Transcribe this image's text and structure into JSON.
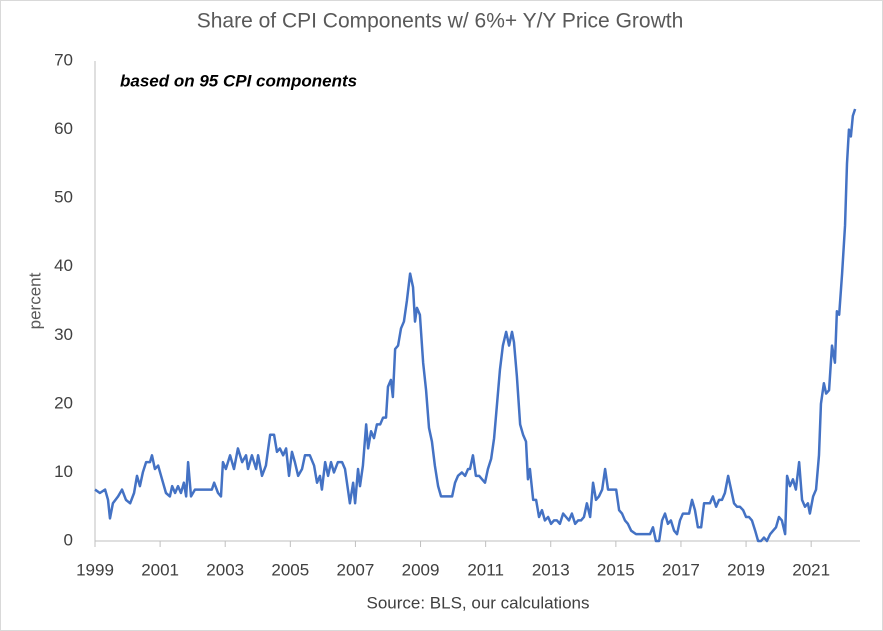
{
  "chart_data": {
    "type": "line",
    "title": "Share of CPI Components w/ 6%+ Y/Y Price Growth",
    "annotation": "based on 95 CPI components",
    "y_label": "percent",
    "x_label": "Source: BLS, our calculations",
    "color": "#4472c4",
    "xlim": [
      1999,
      2022.5
    ],
    "ylim": [
      0,
      70
    ],
    "xticks": [
      1999,
      2001,
      2003,
      2005,
      2007,
      2009,
      2011,
      2013,
      2015,
      2017,
      2019,
      2021
    ],
    "yticks": [
      0,
      10,
      20,
      30,
      40,
      50,
      60,
      70
    ],
    "grid": false,
    "x": [
      1999.0,
      1999.15,
      1999.31,
      1999.4,
      1999.46,
      1999.55,
      1999.71,
      1999.83,
      1999.95,
      2000.08,
      2000.2,
      2000.29,
      2000.38,
      2000.47,
      2000.57,
      2000.69,
      2000.75,
      2000.84,
      2000.94,
      2001.06,
      2001.18,
      2001.3,
      2001.37,
      2001.46,
      2001.55,
      2001.64,
      2001.73,
      2001.8,
      2001.86,
      2001.95,
      2002.07,
      2002.38,
      2002.59,
      2002.66,
      2002.78,
      2002.87,
      2002.93,
      2003.02,
      2003.15,
      2003.27,
      2003.39,
      2003.52,
      2003.64,
      2003.7,
      2003.82,
      2003.95,
      2004.01,
      2004.13,
      2004.25,
      2004.38,
      2004.5,
      2004.59,
      2004.68,
      2004.78,
      2004.87,
      2004.96,
      2005.05,
      2005.14,
      2005.24,
      2005.36,
      2005.45,
      2005.6,
      2005.73,
      2005.82,
      2005.91,
      2005.97,
      2006.07,
      2006.16,
      2006.25,
      2006.34,
      2006.46,
      2006.59,
      2006.68,
      2006.77,
      2006.83,
      2006.93,
      2006.99,
      2007.08,
      2007.14,
      2007.23,
      2007.33,
      2007.39,
      2007.48,
      2007.57,
      2007.66,
      2007.76,
      2007.85,
      2007.94,
      2008.0,
      2008.09,
      2008.15,
      2008.22,
      2008.31,
      2008.4,
      2008.49,
      2008.58,
      2008.68,
      2008.77,
      2008.83,
      2008.89,
      2008.98,
      2009.08,
      2009.17,
      2009.26,
      2009.35,
      2009.44,
      2009.54,
      2009.63,
      2009.84,
      2009.97,
      2010.06,
      2010.15,
      2010.27,
      2010.37,
      2010.46,
      2010.52,
      2010.61,
      2010.7,
      2010.8,
      2010.89,
      2010.98,
      2011.07,
      2011.17,
      2011.26,
      2011.35,
      2011.44,
      2011.53,
      2011.63,
      2011.72,
      2011.81,
      2011.87,
      2011.96,
      2012.06,
      2012.15,
      2012.24,
      2012.3,
      2012.36,
      2012.46,
      2012.55,
      2012.64,
      2012.73,
      2012.82,
      2012.92,
      2013.01,
      2013.1,
      2013.19,
      2013.28,
      2013.38,
      2013.47,
      2013.56,
      2013.65,
      2013.75,
      2013.84,
      2013.93,
      2014.02,
      2014.11,
      2014.21,
      2014.3,
      2014.39,
      2014.48,
      2014.58,
      2014.67,
      2014.76,
      2014.91,
      2015.01,
      2015.1,
      2015.19,
      2015.28,
      2015.37,
      2015.47,
      2015.62,
      2015.9,
      2016.05,
      2016.14,
      2016.23,
      2016.33,
      2016.42,
      2016.51,
      2016.6,
      2016.69,
      2016.79,
      2016.88,
      2016.97,
      2017.06,
      2017.16,
      2017.25,
      2017.34,
      2017.43,
      2017.52,
      2017.62,
      2017.71,
      2017.8,
      2017.89,
      2017.98,
      2018.08,
      2018.17,
      2018.26,
      2018.35,
      2018.45,
      2018.54,
      2018.63,
      2018.72,
      2018.81,
      2018.91,
      2019.0,
      2019.09,
      2019.18,
      2019.28,
      2019.37,
      2019.46,
      2019.55,
      2019.64,
      2019.74,
      2019.83,
      2019.92,
      2020.01,
      2020.1,
      2020.2,
      2020.26,
      2020.35,
      2020.44,
      2020.53,
      2020.63,
      2020.72,
      2020.81,
      2020.9,
      2020.96,
      2021.06,
      2021.15,
      2021.24,
      2021.3,
      2021.39,
      2021.46,
      2021.55,
      2021.64,
      2021.73,
      2021.79,
      2021.86,
      2021.95,
      2022.04,
      2022.1,
      2022.16,
      2022.22,
      2022.28,
      2022.35
    ],
    "values": [
      7.5,
      7,
      7.5,
      6,
      3.3,
      5.5,
      6.5,
      7.5,
      6,
      5.5,
      7,
      9.5,
      8,
      10,
      11.5,
      11.5,
      12.5,
      10.5,
      11,
      9,
      7,
      6.5,
      8,
      7,
      8,
      7,
      8.5,
      6.5,
      11.5,
      6.5,
      7.5,
      7.5,
      7.5,
      8.5,
      7,
      6.5,
      11.5,
      10.5,
      12.5,
      10.5,
      13.5,
      11.5,
      12.5,
      10.5,
      12.5,
      10.5,
      12.5,
      9.5,
      11,
      15.5,
      15.5,
      13,
      13.5,
      12.5,
      13.5,
      9.5,
      13,
      11.5,
      9.5,
      10.5,
      12.5,
      12.5,
      11,
      8.5,
      9.5,
      7.5,
      11.5,
      9.5,
      11.5,
      10,
      11.5,
      11.5,
      10.5,
      7.5,
      5.5,
      8.5,
      5.5,
      10.5,
      8,
      11,
      17,
      13.5,
      16,
      15,
      17,
      17,
      18,
      18,
      22.5,
      23.5,
      21,
      28,
      28.5,
      31,
      32,
      35,
      39,
      37,
      32,
      34,
      33,
      26,
      22,
      16.5,
      14.5,
      11,
      8,
      6.5,
      6.5,
      6.5,
      8.5,
      9.5,
      10,
      9.5,
      10.5,
      10.5,
      12.5,
      9.5,
      9.5,
      9,
      8.5,
      10.5,
      12,
      15,
      20,
      25,
      28.5,
      30.5,
      28.5,
      30.5,
      29,
      24,
      17,
      15.5,
      14.5,
      9,
      10.5,
      6,
      6,
      3.5,
      4.5,
      3,
      3.5,
      2.5,
      3,
      3,
      2.5,
      4,
      3.5,
      3,
      4,
      2.5,
      3,
      3,
      3.5,
      5.5,
      3.5,
      8.5,
      6,
      6.5,
      7.5,
      10.5,
      7.5,
      7.5,
      7.5,
      4.5,
      4,
      3,
      2.5,
      1.5,
      1,
      1,
      1,
      2,
      0,
      0,
      3,
      4,
      2.5,
      3,
      1.5,
      1,
      3,
      4,
      4,
      4,
      6,
      4.5,
      2,
      2,
      5.5,
      5.5,
      5.5,
      6.5,
      5,
      6,
      6,
      7,
      9.5,
      7.5,
      5.5,
      5,
      5,
      4.5,
      3.5,
      3.5,
      3,
      1.5,
      0,
      0,
      0.5,
      0,
      1,
      1.5,
      2,
      3.5,
      3,
      1,
      9.5,
      8,
      9,
      7.5,
      11.5,
      6,
      5,
      5.5,
      4,
      6.5,
      7.5,
      12.5,
      20,
      23,
      21.5,
      22,
      28.5,
      26,
      33.5,
      33,
      39,
      46,
      55,
      60,
      59,
      62,
      63
    ]
  }
}
